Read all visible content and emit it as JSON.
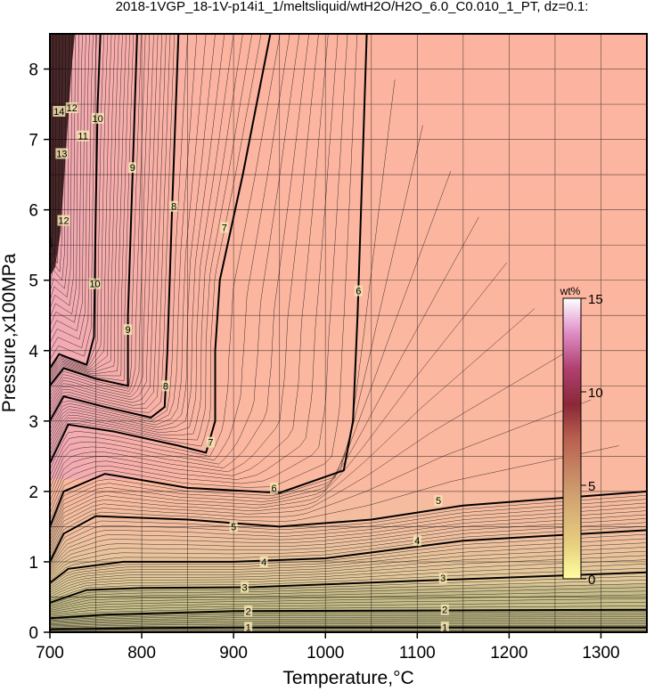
{
  "chart_data": {
    "type": "contour",
    "title": "2018-1VGP_18-1V-p14i1_1/meltsliquid/wtH2O/H2O_6.0_C0.010_1_PT, dz=0.1:",
    "xlabel": "Temperature,°C",
    "ylabel": "Pressure,x100MPa",
    "xlim": [
      700,
      1350
    ],
    "ylim": [
      0,
      8.5
    ],
    "xticks": [
      700,
      800,
      900,
      1000,
      1100,
      1200,
      1300
    ],
    "yticks": [
      0,
      1,
      2,
      3,
      4,
      5,
      6,
      7,
      8
    ],
    "grid": true,
    "colorbar": {
      "label": "wt%",
      "range": [
        0,
        15
      ],
      "ticks": [
        0,
        5,
        10,
        15
      ],
      "colors": [
        "#ffffa0",
        "#e0c070",
        "#c89060",
        "#b05848",
        "#8a2838",
        "#b84070",
        "#e89ad0",
        "#ffffff"
      ]
    },
    "contours": [
      {
        "level": 1,
        "label": "1",
        "points": [
          [
            700,
            0.04
          ],
          [
            800,
            0.06
          ],
          [
            950,
            0.07
          ],
          [
            1350,
            0.07
          ]
        ]
      },
      {
        "level": 2,
        "label": "2",
        "points": [
          [
            700,
            0.2
          ],
          [
            760,
            0.25
          ],
          [
            900,
            0.3
          ],
          [
            1350,
            0.32
          ]
        ]
      },
      {
        "level": 3,
        "label": "3",
        "points": [
          [
            700,
            0.42
          ],
          [
            740,
            0.6
          ],
          [
            800,
            0.63
          ],
          [
            920,
            0.64
          ],
          [
            1100,
            0.73
          ],
          [
            1350,
            0.85
          ]
        ]
      },
      {
        "level": 4,
        "label": "4",
        "points": [
          [
            700,
            0.7
          ],
          [
            720,
            0.9
          ],
          [
            780,
            1.0
          ],
          [
            900,
            1.0
          ],
          [
            1000,
            1.05
          ],
          [
            1060,
            1.15
          ],
          [
            1150,
            1.3
          ],
          [
            1350,
            1.45
          ]
        ]
      },
      {
        "level": 5,
        "label": "5",
        "points": [
          [
            700,
            1.0
          ],
          [
            715,
            1.4
          ],
          [
            750,
            1.65
          ],
          [
            850,
            1.6
          ],
          [
            950,
            1.5
          ],
          [
            1050,
            1.6
          ],
          [
            1150,
            1.8
          ],
          [
            1350,
            2.0
          ]
        ]
      },
      {
        "level": 6,
        "label": "6",
        "points": [
          [
            700,
            1.5
          ],
          [
            715,
            2.0
          ],
          [
            760,
            2.25
          ],
          [
            850,
            2.05
          ],
          [
            950,
            1.98
          ],
          [
            1020,
            2.3
          ],
          [
            1030,
            3.0
          ],
          [
            1035,
            4.5
          ],
          [
            1040,
            6.5
          ],
          [
            1045,
            8.5
          ]
        ]
      },
      {
        "level": 7,
        "label": "7",
        "points": [
          [
            700,
            2.4
          ],
          [
            720,
            2.95
          ],
          [
            770,
            2.85
          ],
          [
            840,
            2.65
          ],
          [
            870,
            2.55
          ],
          [
            880,
            3.0
          ],
          [
            880,
            4.0
          ],
          [
            885,
            5.0
          ],
          [
            910,
            6.5
          ],
          [
            940,
            8.5
          ]
        ]
      },
      {
        "level": 8,
        "label": "8",
        "points": [
          [
            700,
            3.0
          ],
          [
            715,
            3.35
          ],
          [
            760,
            3.2
          ],
          [
            810,
            3.05
          ],
          [
            825,
            3.2
          ],
          [
            828,
            4.0
          ],
          [
            833,
            6.0
          ],
          [
            840,
            8.5
          ]
        ]
      },
      {
        "level": 9,
        "label": "9",
        "points": [
          [
            700,
            3.5
          ],
          [
            715,
            3.75
          ],
          [
            750,
            3.6
          ],
          [
            785,
            3.5
          ],
          [
            785,
            4.5
          ],
          [
            790,
            6.5
          ],
          [
            795,
            8.5
          ]
        ]
      },
      {
        "level": 10,
        "label": "10",
        "points": [
          [
            700,
            3.75
          ],
          [
            710,
            3.95
          ],
          [
            740,
            3.8
          ],
          [
            748,
            4.2
          ],
          [
            750,
            6.0
          ],
          [
            752,
            7.5
          ],
          [
            755,
            8.5
          ]
        ]
      }
    ],
    "contour_labels": [
      {
        "text": "1",
        "x": 916,
        "y": 0.07
      },
      {
        "text": "1",
        "x": 1130,
        "y": 0.07
      },
      {
        "text": "2",
        "x": 916,
        "y": 0.3
      },
      {
        "text": "2",
        "x": 1130,
        "y": 0.32
      },
      {
        "text": "3",
        "x": 912,
        "y": 0.64
      },
      {
        "text": "3",
        "x": 1128,
        "y": 0.77
      },
      {
        "text": "4",
        "x": 933,
        "y": 1.0
      },
      {
        "text": "4",
        "x": 1100,
        "y": 1.3
      },
      {
        "text": "5",
        "x": 900,
        "y": 1.5
      },
      {
        "text": "5",
        "x": 1123,
        "y": 1.87
      },
      {
        "text": "6",
        "x": 944,
        "y": 2.05
      },
      {
        "text": "6",
        "x": 1036,
        "y": 4.85
      },
      {
        "text": "7",
        "x": 875,
        "y": 2.7
      },
      {
        "text": "7",
        "x": 890,
        "y": 5.75
      },
      {
        "text": "8",
        "x": 826,
        "y": 3.5
      },
      {
        "text": "8",
        "x": 835,
        "y": 6.05
      },
      {
        "text": "9",
        "x": 785,
        "y": 4.3
      },
      {
        "text": "9",
        "x": 790,
        "y": 6.6
      },
      {
        "text": "10",
        "x": 749,
        "y": 4.95
      },
      {
        "text": "10",
        "x": 752,
        "y": 7.3
      },
      {
        "text": "11",
        "x": 736,
        "y": 7.05
      },
      {
        "text": "12",
        "x": 715,
        "y": 5.85
      },
      {
        "text": "12",
        "x": 724,
        "y": 7.45
      },
      {
        "text": "13",
        "x": 713,
        "y": 6.8
      },
      {
        "text": "14",
        "x": 710,
        "y": 7.4
      }
    ]
  }
}
